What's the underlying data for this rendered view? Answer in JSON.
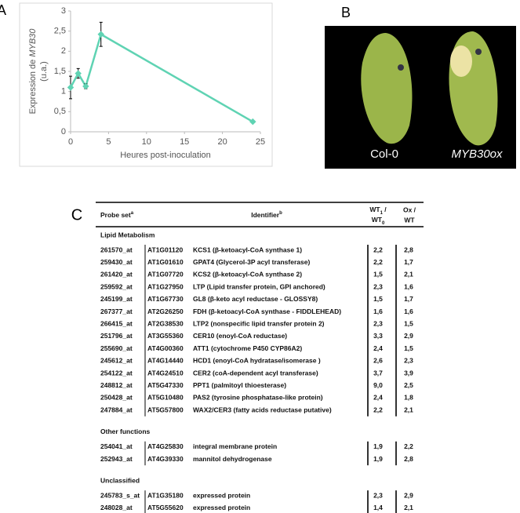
{
  "panels": {
    "a": "A",
    "b": "B",
    "c": "C"
  },
  "chart_data": {
    "type": "line",
    "ylabel": {
      "prefix": "Expression de ",
      "gene": "MYB30",
      "unit": "(u.a.)"
    },
    "xlabel": "Heures post-inoculation",
    "x": [
      0,
      1,
      2,
      4,
      24
    ],
    "values": [
      1.1,
      1.45,
      1.13,
      2.42,
      0.25
    ],
    "errors": [
      0.28,
      0.12,
      0.06,
      0.3,
      0.02
    ],
    "color": "#5fd3b3",
    "xlim": [
      0,
      25
    ],
    "xticks": [
      0,
      5,
      10,
      15,
      20,
      25
    ],
    "ylim": [
      0,
      3
    ],
    "yticks": [
      0,
      {
        "value": 0.5,
        "label": "0,5"
      },
      1,
      {
        "value": 1.5,
        "label": "1,5"
      },
      2,
      {
        "value": 2.5,
        "label": "2,5"
      },
      3
    ]
  },
  "photo": {
    "left": "Col-0",
    "right": "MYB30ox"
  },
  "table": {
    "header": {
      "probe": "Probe set",
      "probe_note": "a",
      "identifier": "Identifier",
      "identifier_note": "b",
      "wt_a": "WT",
      "wt_a_sub": "1",
      "wt_sep": " /",
      "wt_b": "WT",
      "wt_b_sub": "0",
      "ox_a": "Ox /",
      "ox_b": "WT"
    },
    "sections": [
      {
        "title": "Lipid Metabolism",
        "rows": [
          [
            "261570_at",
            "AT1G01120",
            "KCS1 (β-ketoacyl-CoA synthase 1)",
            "2,2",
            "2,8"
          ],
          [
            "259430_at",
            "AT1G01610",
            "GPAT4 (Glycerol-3P acyl transferase)",
            "2,2",
            "1,7"
          ],
          [
            "261420_at",
            "AT1G07720",
            "KCS2 (β-ketoacyl-CoA synthase 2)",
            "1,5",
            "2,1"
          ],
          [
            "259592_at",
            "AT1G27950",
            "LTP (Lipid transfer protein, GPI anchored)",
            "2,3",
            "1,6"
          ],
          [
            "245199_at",
            "AT1G67730",
            "GL8 (β-keto acyl reductase - GLOSSY8)",
            "1,5",
            "1,7"
          ],
          [
            "267377_at",
            "AT2G26250",
            "FDH (β-ketoacyl-CoA synthase - FIDDLEHEAD)",
            "1,6",
            "1,6"
          ],
          [
            "266415_at",
            "AT2G38530",
            "LTP2 (nonspecific lipid transfer protein 2)",
            "2,3",
            "1,5"
          ],
          [
            "251796_at",
            "AT3G55360",
            "CER10 (enoyl-CoA reductase)",
            "3,3",
            "2,9"
          ],
          [
            "255690_at",
            "AT4G00360",
            "ATT1 (cytochrome P450 CYP86A2)",
            "2,4",
            "1,5"
          ],
          [
            "245612_at",
            "AT4G14440",
            "HCD1 (enoyl-CoA hydratase/isomerase )",
            "2,6",
            "2,3"
          ],
          [
            "254122_at",
            "AT4G24510",
            "CER2 (coA-dependent acyl transferase)",
            "3,7",
            "3,9"
          ],
          [
            "248812_at",
            "AT5G47330",
            "PPT1 (palmitoyl thioesterase)",
            "9,0",
            "2,5"
          ],
          [
            "250428_at",
            "AT5G10480",
            "PAS2 (tyrosine phosphatase-like protein)",
            "2,4",
            "1,8"
          ],
          [
            "247884_at",
            "AT5G57800",
            "WAX2/CER3 (fatty acids reductase putative)",
            "2,2",
            "2,1"
          ]
        ]
      },
      {
        "title": "Other functions",
        "rows": [
          [
            "254041_at",
            "AT4G25830",
            "integral membrane protein",
            "1,9",
            "2,2"
          ],
          [
            "252943_at",
            "AT4G39330",
            "mannitol dehydrogenase",
            "1,9",
            "2,8"
          ]
        ]
      },
      {
        "title": "Unclassified",
        "rows": [
          [
            "245783_s_at",
            "AT1G35180",
            "expressed protein",
            "2,3",
            "2,9"
          ],
          [
            "248028_at",
            "AT5G55620",
            "expressed protein",
            "1,4",
            "2,1"
          ]
        ]
      }
    ]
  }
}
